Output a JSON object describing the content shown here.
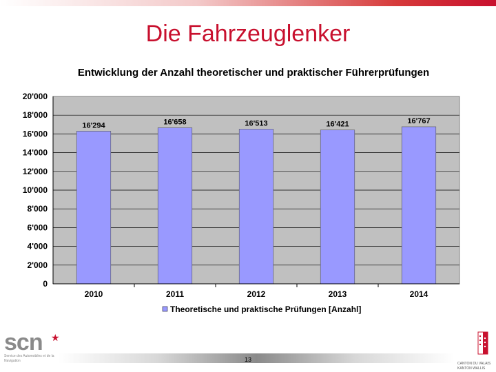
{
  "slide": {
    "title": "Die Fahrzeuglenker",
    "page_number": "13"
  },
  "logos": {
    "left": {
      "text": "scn",
      "subtitle": "Service des Automobiles et de la Navigation",
      "star_icon": "star-icon"
    },
    "right": {
      "text": "CANTON DU VALAIS KANTON WALLIS",
      "icon": "coat-of-arms-icon"
    }
  },
  "chart_data": {
    "type": "bar",
    "title": "Entwicklung der Anzahl theoretischer und praktischer Führerprüfungen",
    "categories": [
      "2010",
      "2011",
      "2012",
      "2013",
      "2014"
    ],
    "series": [
      {
        "name": "Theoretische und praktische Prüfungen [Anzahl]",
        "values": [
          16294,
          16658,
          16513,
          16421,
          16767
        ],
        "data_labels": [
          "16'294",
          "16'658",
          "16'513",
          "16'421",
          "16'767"
        ],
        "color": "#9999ff"
      }
    ],
    "y_ticks": [
      "0",
      "2'000",
      "4'000",
      "6'000",
      "8'000",
      "10'000",
      "12'000",
      "14'000",
      "16'000",
      "18'000",
      "20'000"
    ],
    "ylim": [
      0,
      20000
    ],
    "grid": true,
    "legend_position": "bottom",
    "plot_background": "#c0c0c0",
    "xlabel": "",
    "ylabel": ""
  }
}
